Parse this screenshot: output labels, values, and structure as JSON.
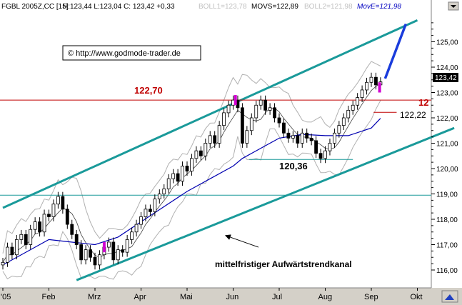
{
  "chart_data": {
    "type": "candlestick",
    "title": "FGBL 2005Z,CC [15]",
    "header": {
      "symbol": "FGBL 2005Z,CC [15]",
      "ohlc_text": "H:123,44 L:123,04 C: 123,42 +0,33",
      "boll1": "BOLL1=123,78",
      "movs": "MOVS=122,89",
      "boll2": "BOLL2=121,98",
      "move": "MovE=121,98"
    },
    "copyright": "© http://www.godmode-trader.de",
    "x_ticks": [
      "'05",
      "Feb",
      "Mrz",
      "Apr",
      "Mai",
      "Jun",
      "Jul",
      "Aug",
      "Sep",
      "Okt"
    ],
    "y_ticks": [
      "116,00",
      "117,00",
      "118,00",
      "119,00",
      "120,00",
      "121,00",
      "122,00",
      "123,00",
      "124,00",
      "125,00"
    ],
    "y_range": [
      115.6,
      126.2
    ],
    "last_price": "123,42",
    "annotations": {
      "resistance_label": "122,70",
      "resistance_label_right": "12",
      "support_label": "120,36",
      "ma_label": "122,22",
      "trend_channel": "mittelfristiger Aufwärtstrendkanal"
    },
    "levels": {
      "resistance": 122.7,
      "horizontal_cyan": 118.95,
      "support_120": 120.36,
      "ma_end": 122.22
    },
    "channel_upper": [
      {
        "x": 0.0,
        "y": 118.45
      },
      {
        "x": 9.0,
        "y": 125.85
      }
    ],
    "channel_lower": [
      {
        "x": 1.6,
        "y": 115.6
      },
      {
        "x": 9.8,
        "y": 121.6
      }
    ],
    "forecast_arrow": [
      {
        "x": 8.3,
        "y": 123.55
      },
      {
        "x": 8.75,
        "y": 125.7
      }
    ],
    "trend_arrow": [
      {
        "x": 5.55,
        "y": 116.9
      },
      {
        "x": 4.85,
        "y": 117.35
      }
    ],
    "moving_average": [
      [
        0,
        116.2
      ],
      [
        0.5,
        116.7
      ],
      [
        1.0,
        117.2
      ],
      [
        1.5,
        117.1
      ],
      [
        2.0,
        117.0
      ],
      [
        2.5,
        117.3
      ],
      [
        3.0,
        117.9
      ],
      [
        3.5,
        118.5
      ],
      [
        4.0,
        119.1
      ],
      [
        4.5,
        119.6
      ],
      [
        5.0,
        120.1
      ],
      [
        5.2,
        120.4
      ],
      [
        5.5,
        120.7
      ],
      [
        6.0,
        121.2
      ],
      [
        6.5,
        121.35
      ],
      [
        7.0,
        121.3
      ],
      [
        7.5,
        121.3
      ],
      [
        8.0,
        121.6
      ],
      [
        8.2,
        121.98
      ]
    ],
    "closes": [
      [
        0.0,
        116.3
      ],
      [
        0.1,
        116.9
      ],
      [
        0.2,
        116.6
      ],
      [
        0.3,
        117.2
      ],
      [
        0.4,
        117.4
      ],
      [
        0.5,
        117.0
      ],
      [
        0.6,
        117.6
      ],
      [
        0.7,
        117.9
      ],
      [
        0.8,
        117.5
      ],
      [
        0.9,
        118.2
      ],
      [
        1.0,
        118.1
      ],
      [
        1.1,
        118.6
      ],
      [
        1.2,
        118.9
      ],
      [
        1.3,
        118.4
      ],
      [
        1.4,
        117.8
      ],
      [
        1.5,
        117.4
      ],
      [
        1.6,
        117.0
      ],
      [
        1.7,
        116.4
      ],
      [
        1.8,
        116.8
      ],
      [
        1.9,
        116.5
      ],
      [
        2.0,
        116.2
      ],
      [
        2.1,
        116.6
      ],
      [
        2.2,
        116.9
      ],
      [
        2.3,
        117.1
      ],
      [
        2.4,
        116.4
      ],
      [
        2.5,
        116.8
      ],
      [
        2.6,
        116.7
      ],
      [
        2.7,
        117.2
      ],
      [
        2.8,
        117.5
      ],
      [
        2.9,
        117.8
      ],
      [
        3.0,
        118.1
      ],
      [
        3.1,
        118.4
      ],
      [
        3.2,
        118.3
      ],
      [
        3.3,
        118.8
      ],
      [
        3.4,
        119.0
      ],
      [
        3.5,
        119.2
      ],
      [
        3.6,
        119.6
      ],
      [
        3.7,
        119.8
      ],
      [
        3.8,
        119.5
      ],
      [
        3.9,
        120.1
      ],
      [
        4.0,
        119.9
      ],
      [
        4.1,
        120.4
      ],
      [
        4.2,
        120.7
      ],
      [
        4.3,
        120.5
      ],
      [
        4.4,
        121.0
      ],
      [
        4.5,
        121.3
      ],
      [
        4.6,
        121.0
      ],
      [
        4.7,
        121.7
      ],
      [
        4.8,
        122.2
      ],
      [
        4.9,
        122.5
      ],
      [
        5.0,
        122.7
      ],
      [
        5.1,
        122.4
      ],
      [
        5.2,
        121.0
      ],
      [
        5.3,
        121.5
      ],
      [
        5.4,
        122.0
      ],
      [
        5.5,
        122.5
      ],
      [
        5.6,
        122.7
      ],
      [
        5.7,
        122.3
      ],
      [
        5.8,
        122.4
      ],
      [
        5.9,
        122.0
      ],
      [
        6.0,
        121.8
      ],
      [
        6.1,
        121.4
      ],
      [
        6.2,
        121.2
      ],
      [
        6.3,
        121.3
      ],
      [
        6.4,
        121.0
      ],
      [
        6.5,
        121.4
      ],
      [
        6.6,
        121.2
      ],
      [
        6.7,
        121.1
      ],
      [
        6.8,
        120.6
      ],
      [
        6.9,
        120.4
      ],
      [
        7.0,
        120.7
      ],
      [
        7.1,
        121.0
      ],
      [
        7.2,
        121.4
      ],
      [
        7.3,
        121.7
      ],
      [
        7.4,
        122.0
      ],
      [
        7.5,
        122.3
      ],
      [
        7.6,
        122.5
      ],
      [
        7.7,
        122.8
      ],
      [
        7.8,
        123.1
      ],
      [
        7.9,
        123.4
      ],
      [
        8.0,
        123.6
      ],
      [
        8.1,
        123.3
      ],
      [
        8.2,
        123.42
      ]
    ]
  }
}
